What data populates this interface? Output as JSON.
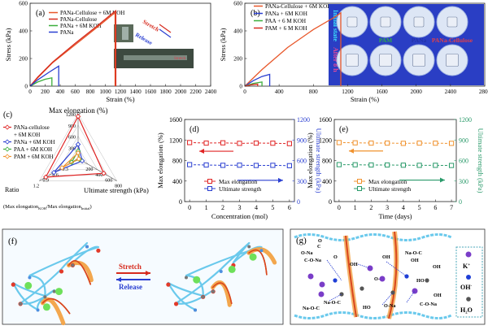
{
  "panel_a": {
    "label": "(a)",
    "legend": [
      "PANa-Cellulose + 6M KOH",
      "PANa-Cellulose",
      "PANa + 6M KOH",
      "PANa"
    ],
    "legend_colors": [
      "#e8572a",
      "#d62b1e",
      "#3cae3c",
      "#2a3fd1"
    ],
    "stretch_label": "Stretch",
    "release_label": "Release",
    "photo_text": "Stretch"
  },
  "panel_b": {
    "label": "(b)",
    "legend": [
      "PANa-Cellulose + 6M KOH",
      "PANa + 6M KOH",
      "PAA + 6 M KOH",
      "PAM + 6 M KOH"
    ],
    "legend_colors": [
      "#e8572a",
      "#2a3fd1",
      "#3cae3c",
      "#d62b1e"
    ],
    "initial_state": "Initial state",
    "after": "After 8 h",
    "samples": [
      "PAA",
      "PAM",
      "PANa",
      "PANa-Cellulose"
    ],
    "sample_colors": [
      "#1f3fd6",
      "#2fa84a",
      "#2233aa",
      "#e0404a"
    ]
  },
  "panel_c": {
    "label": "(c)",
    "top_axis": "Max elongation (%)",
    "right_axis": "Ultimate strength (kPa)",
    "left_axis_1": "Ratio",
    "left_axis_2": "(Max elongation",
    "left_axis_sub1": "KOH",
    "left_axis_3": "/Max elongation",
    "left_axis_sub2": "Initial",
    "left_axis_4": ")",
    "top_ticks": [
      "1200",
      "900",
      "600",
      "300"
    ],
    "right_ticks": [
      "200",
      "400",
      "600",
      "800"
    ],
    "left_ticks": [
      "0.3",
      "0.6",
      "0.9",
      "1.2"
    ],
    "legend": [
      "PANa-cellulose",
      "+ 6M KOH",
      "PANa + 6M KOH",
      "PAA + 6M KOH",
      "PAM + 6M KOH"
    ]
  },
  "panel_d": {
    "label": "(d)",
    "y_left_label": "Max elongation (%)",
    "y_right_label": "Ultimate strength (kPa)",
    "x_label": "Concentration (mol)",
    "legend": [
      "Max elongation",
      "Ultimate strength"
    ]
  },
  "panel_e": {
    "label": "(e)",
    "y_left_label": "Max elongation (%)",
    "y_right_label": "Ultimate strength (kPa)",
    "x_label": "Time (days)",
    "legend": [
      "Max elongation",
      "Ultimate strength"
    ]
  },
  "panel_f": {
    "label": "(f)",
    "stretch": "Stretch",
    "release": "Release"
  },
  "panel_g": {
    "label": "(g)",
    "legend_k": "K",
    "legend_k_sup": "+",
    "legend_oh": "OH",
    "legend_oh_sup": "-",
    "legend_h2o": "H₂O",
    "chem_labels": [
      "O-Na",
      "C",
      "O",
      "O",
      "C-O-Na",
      "OH",
      "OH",
      "OH",
      "Na-O-C",
      "Na-O-C",
      "Na-O-C",
      "O-C",
      "HO",
      "HO",
      "O-Na",
      "C-O-Na",
      "OH",
      "OH"
    ]
  },
  "chart_data": [
    {
      "type": "line",
      "title": "(a)",
      "xlabel": "Strain (%)",
      "ylabel": "Stress (kPa)",
      "xlim": [
        0,
        2400
      ],
      "ylim": [
        0,
        600
      ],
      "xticks": [
        "0",
        "200",
        "400",
        "600",
        "800",
        "1000",
        "1200",
        "1400",
        "1600",
        "1800",
        "2000",
        "2200",
        "2400"
      ],
      "yticks": [
        "0",
        "200",
        "400",
        "600"
      ],
      "series": [
        {
          "name": "PANa-Cellulose + 6M KOH",
          "color": "#e8572a",
          "x": [
            0,
            100,
            300,
            600,
            900,
            1100,
            1130,
            1130
          ],
          "y": [
            0,
            60,
            170,
            300,
            430,
            520,
            530,
            0
          ]
        },
        {
          "name": "PANa-Cellulose",
          "color": "#d62b1e",
          "x": [
            0,
            100,
            300,
            600,
            900,
            1100,
            1140,
            1140
          ],
          "y": [
            0,
            65,
            175,
            310,
            440,
            530,
            545,
            0
          ]
        },
        {
          "name": "PANa + 6M KOH",
          "color": "#3cae3c",
          "x": [
            0,
            100,
            200,
            290,
            290
          ],
          "y": [
            0,
            30,
            50,
            60,
            0
          ]
        },
        {
          "name": "PANa",
          "color": "#2a3fd1",
          "x": [
            0,
            100,
            250,
            380,
            380
          ],
          "y": [
            0,
            45,
            100,
            145,
            0
          ]
        }
      ]
    },
    {
      "type": "line",
      "title": "(b)",
      "xlabel": "Strain (%)",
      "ylabel": "Stress (kPa)",
      "xlim": [
        0,
        2800
      ],
      "ylim": [
        0,
        600
      ],
      "xticks": [
        "0",
        "400",
        "800",
        "1200",
        "1600",
        "2000",
        "2400",
        "2800"
      ],
      "yticks": [
        "0",
        "200",
        "400",
        "600"
      ],
      "series": [
        {
          "name": "PANa-Cellulose + 6M KOH",
          "color": "#e8572a",
          "x": [
            0,
            200,
            500,
            800,
            1050,
            1120,
            1120
          ],
          "y": [
            0,
            120,
            280,
            410,
            500,
            530,
            0
          ]
        },
        {
          "name": "PANa + 6M KOH",
          "color": "#2a3fd1",
          "x": [
            0,
            100,
            200,
            290,
            290
          ],
          "y": [
            0,
            40,
            70,
            85,
            0
          ]
        },
        {
          "name": "PAA + 6 M KOH",
          "color": "#3cae3c",
          "x": [
            0,
            100,
            200,
            200
          ],
          "y": [
            0,
            20,
            30,
            0
          ]
        },
        {
          "name": "PAM + 6 M KOH",
          "color": "#d62b1e",
          "x": [
            0,
            80,
            150,
            150
          ],
          "y": [
            0,
            10,
            15,
            0
          ]
        }
      ]
    },
    {
      "type": "radar",
      "title": "(c)",
      "axes": [
        "Max elongation (%)",
        "Ultimate strength (kPa)",
        "Ratio"
      ],
      "axis_max": [
        1200,
        800,
        1.2
      ],
      "series": [
        {
          "name": "PANa-cellulose + 6M KOH",
          "color": "#e02424",
          "values": [
            1130,
            530,
            1.0
          ]
        },
        {
          "name": "PANa + 6M KOH",
          "color": "#2a3fd1",
          "values": [
            380,
            85,
            0.75
          ]
        },
        {
          "name": "PAA + 6M KOH",
          "color": "#3cae3c",
          "values": [
            200,
            30,
            0.2
          ]
        },
        {
          "name": "PAM + 6M KOH",
          "color": "#f0922e",
          "values": [
            150,
            15,
            0.5
          ]
        }
      ]
    },
    {
      "type": "line",
      "title": "(d)",
      "xlabel": "Concentration (mol)",
      "ylabel": "Max elongation (%)",
      "y2label": "Ultimate strength (kPa)",
      "x": [
        0,
        1,
        2,
        3,
        4,
        5,
        6
      ],
      "xlim": [
        -0.3,
        6.3
      ],
      "ylim": [
        0,
        1600
      ],
      "y2lim": [
        0,
        1200
      ],
      "yticks": [
        "0",
        "400",
        "800",
        "1200",
        "1600"
      ],
      "y2ticks": [
        "0",
        "300",
        "600",
        "900",
        "1200"
      ],
      "series": [
        {
          "name": "Max elongation",
          "color": "#e02424",
          "axis": "left",
          "values": [
            1150,
            1140,
            1145,
            1135,
            1140,
            1138,
            1130
          ]
        },
        {
          "name": "Ultimate strength",
          "color": "#2a3fd1",
          "axis": "right",
          "values": [
            540,
            535,
            530,
            532,
            528,
            530,
            525
          ]
        }
      ]
    },
    {
      "type": "line",
      "title": "(e)",
      "xlabel": "Time (days)",
      "ylabel": "Max elongation (%)",
      "y2label": "Ultimate strength (kPa)",
      "x": [
        0,
        1,
        2,
        3,
        4,
        5,
        6,
        7
      ],
      "xlim": [
        -0.3,
        7.3
      ],
      "ylim": [
        0,
        1600
      ],
      "y2lim": [
        0,
        1200
      ],
      "yticks": [
        "0",
        "400",
        "800",
        "1200",
        "1600"
      ],
      "y2ticks": [
        "0",
        "300",
        "600",
        "900",
        "1200"
      ],
      "series": [
        {
          "name": "Max elongation",
          "color": "#f0922e",
          "axis": "left",
          "values": [
            1150,
            1145,
            1140,
            1140,
            1135,
            1140,
            1138,
            1135
          ]
        },
        {
          "name": "Ultimate strength",
          "color": "#2a9a6a",
          "axis": "right",
          "values": [
            540,
            538,
            535,
            535,
            532,
            530,
            530,
            528
          ]
        }
      ]
    }
  ]
}
